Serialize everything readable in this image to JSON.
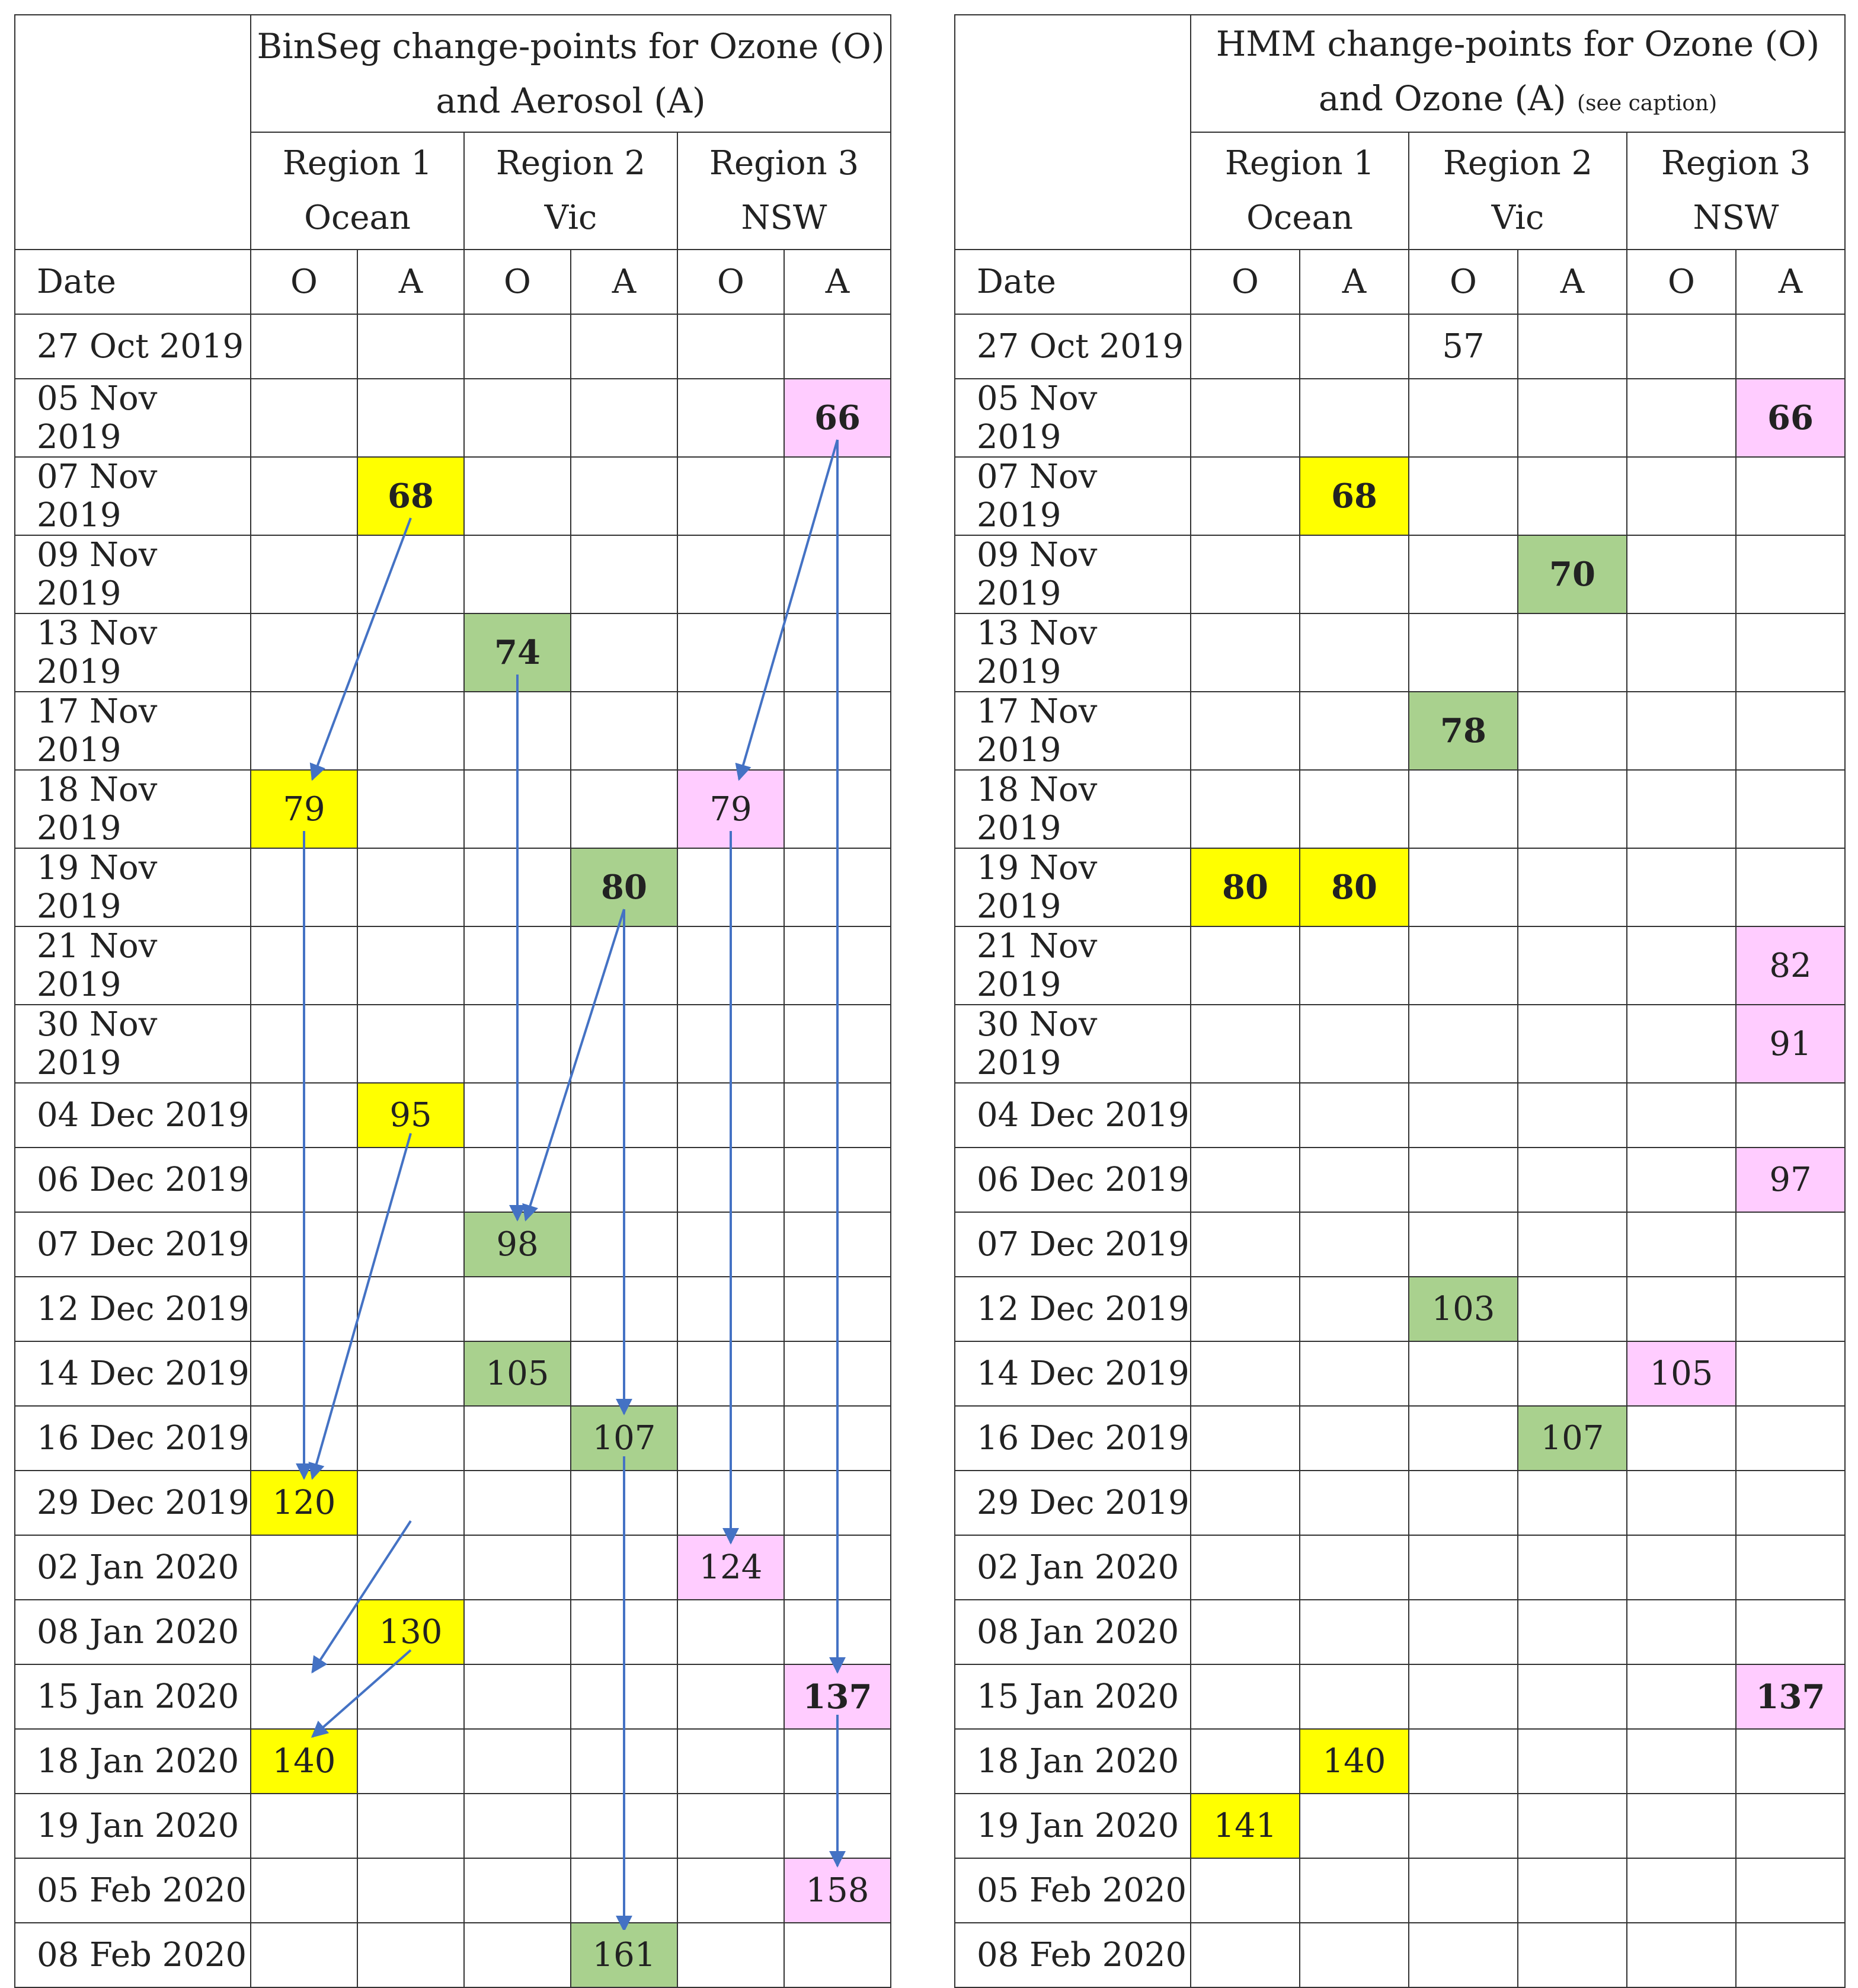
{
  "colors": {
    "yellow": "#ffff00",
    "green": "#a9d18e",
    "pink": "#ffccff",
    "arrow": "#4472c4"
  },
  "left": {
    "title_line1": "BinSeg change-points for Ozone (O)",
    "title_line2": "and Aerosol (A)",
    "title_note": "",
    "regions": [
      {
        "name": "Region 1",
        "sub": "Ocean"
      },
      {
        "name": "Region 2",
        "sub": "Vic"
      },
      {
        "name": "Region 3",
        "sub": "NSW"
      }
    ],
    "date_header": "Date",
    "cols": [
      "O",
      "A",
      "O",
      "A",
      "O",
      "A"
    ],
    "cells": [
      {
        "row": 1,
        "col": 5,
        "value": "66",
        "color": "pink",
        "bold": true
      },
      {
        "row": 2,
        "col": 1,
        "value": "68",
        "color": "yellow",
        "bold": true
      },
      {
        "row": 4,
        "col": 2,
        "value": "74",
        "color": "green",
        "bold": true
      },
      {
        "row": 6,
        "col": 0,
        "value": "79",
        "color": "yellow",
        "bold": false
      },
      {
        "row": 6,
        "col": 4,
        "value": "79",
        "color": "pink",
        "bold": false
      },
      {
        "row": 7,
        "col": 3,
        "value": "80",
        "color": "green",
        "bold": true
      },
      {
        "row": 10,
        "col": 1,
        "value": "95",
        "color": "yellow",
        "bold": false
      },
      {
        "row": 12,
        "col": 2,
        "value": "98",
        "color": "green",
        "bold": false
      },
      {
        "row": 14,
        "col": 2,
        "value": "105",
        "color": "green",
        "bold": false
      },
      {
        "row": 15,
        "col": 3,
        "value": "107",
        "color": "green",
        "bold": false
      },
      {
        "row": 16,
        "col": 0,
        "value": "120",
        "color": "yellow",
        "bold": false
      },
      {
        "row": 17,
        "col": 4,
        "value": "124",
        "color": "pink",
        "bold": false
      },
      {
        "row": 18,
        "col": 1,
        "value": "130",
        "color": "yellow",
        "bold": false
      },
      {
        "row": 19,
        "col": 5,
        "value": "137",
        "color": "pink",
        "bold": true
      },
      {
        "row": 20,
        "col": 0,
        "value": "140",
        "color": "yellow",
        "bold": false
      },
      {
        "row": 22,
        "col": 5,
        "value": "158",
        "color": "pink",
        "bold": false
      },
      {
        "row": 23,
        "col": 3,
        "value": "161",
        "color": "green",
        "bold": false
      }
    ]
  },
  "right": {
    "title_line1": "HMM change-points for Ozone (O)",
    "title_line2": "and Ozone (A)",
    "title_note": "(see caption)",
    "regions": [
      {
        "name": "Region 1",
        "sub": "Ocean"
      },
      {
        "name": "Region 2",
        "sub": "Vic"
      },
      {
        "name": "Region 3",
        "sub": "NSW"
      }
    ],
    "date_header": "Date",
    "cols": [
      "O",
      "A",
      "O",
      "A",
      "O",
      "A"
    ],
    "cells": [
      {
        "row": 0,
        "col": 2,
        "value": "57",
        "color": "",
        "bold": false
      },
      {
        "row": 1,
        "col": 5,
        "value": "66",
        "color": "pink",
        "bold": true
      },
      {
        "row": 2,
        "col": 1,
        "value": "68",
        "color": "yellow",
        "bold": true
      },
      {
        "row": 3,
        "col": 3,
        "value": "70",
        "color": "green",
        "bold": true
      },
      {
        "row": 5,
        "col": 2,
        "value": "78",
        "color": "green",
        "bold": true
      },
      {
        "row": 7,
        "col": 0,
        "value": "80",
        "color": "yellow",
        "bold": true
      },
      {
        "row": 7,
        "col": 1,
        "value": "80",
        "color": "yellow",
        "bold": true
      },
      {
        "row": 8,
        "col": 5,
        "value": "82",
        "color": "pink",
        "bold": false
      },
      {
        "row": 9,
        "col": 5,
        "value": "91",
        "color": "pink",
        "bold": false
      },
      {
        "row": 11,
        "col": 5,
        "value": "97",
        "color": "pink",
        "bold": false
      },
      {
        "row": 13,
        "col": 2,
        "value": "103",
        "color": "green",
        "bold": false
      },
      {
        "row": 14,
        "col": 4,
        "value": "105",
        "color": "pink",
        "bold": false
      },
      {
        "row": 15,
        "col": 3,
        "value": "107",
        "color": "green",
        "bold": false
      },
      {
        "row": 19,
        "col": 5,
        "value": "137",
        "color": "pink",
        "bold": true
      },
      {
        "row": 20,
        "col": 1,
        "value": "140",
        "color": "yellow",
        "bold": false
      },
      {
        "row": 21,
        "col": 0,
        "value": "141",
        "color": "yellow",
        "bold": false
      }
    ]
  },
  "dates": [
    "27 Oct 2019",
    "05 Nov 2019",
    "07 Nov 2019",
    "09 Nov 2019",
    "13 Nov 2019",
    "17 Nov 2019",
    "18 Nov 2019",
    "19 Nov 2019",
    "21 Nov 2019",
    "30 Nov 2019",
    "04 Dec 2019",
    "06 Dec 2019",
    "07 Dec 2019",
    "12 Dec 2019",
    "14 Dec 2019",
    "16 Dec 2019",
    "29 Dec 2019",
    "02 Jan 2020",
    "08 Jan 2020",
    "15 Jan 2020",
    "18 Jan 2020",
    "19 Jan 2020",
    "05 Feb 2020",
    "08 Feb 2020"
  ],
  "arrows": [
    {
      "from": [
        2,
        1
      ],
      "to": [
        6,
        0
      ]
    },
    {
      "from": [
        1,
        5
      ],
      "to": [
        6,
        4
      ]
    },
    {
      "from": [
        1,
        5
      ],
      "to": [
        19,
        5
      ]
    },
    {
      "from": [
        4,
        2
      ],
      "to": [
        12,
        2
      ]
    },
    {
      "from": [
        7,
        3
      ],
      "to": [
        12,
        2
      ]
    },
    {
      "from": [
        7,
        3
      ],
      "to": [
        15,
        3
      ]
    },
    {
      "from": [
        6,
        0
      ],
      "to": [
        16,
        0
      ]
    },
    {
      "from": [
        10,
        1
      ],
      "to": [
        16,
        0
      ]
    },
    {
      "from": [
        6,
        4
      ],
      "to": [
        17,
        4
      ]
    },
    {
      "from": [
        16,
        1
      ],
      "to": [
        19,
        0
      ]
    },
    {
      "from": [
        18,
        1
      ],
      "to": [
        20,
        0
      ]
    },
    {
      "from": [
        19,
        5
      ],
      "to": [
        22,
        5
      ]
    },
    {
      "from": [
        15,
        3
      ],
      "to": [
        23,
        3
      ]
    }
  ]
}
